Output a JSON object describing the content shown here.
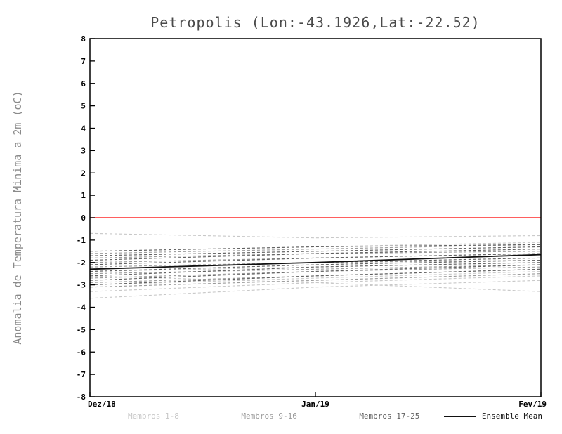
{
  "chart_data": {
    "type": "line",
    "title": "Petropolis (Lon:-43.1926,Lat:-22.52)",
    "xlabel": "",
    "ylabel": "Anomalia de Temperatura Minima a 2m (oC)",
    "x_ticks": [
      "Dez/18",
      "Jan/19",
      "Fev/19"
    ],
    "ylim": [
      -8,
      8
    ],
    "y_ticks": [
      8,
      7,
      6,
      5,
      4,
      3,
      2,
      1,
      0,
      -1,
      -2,
      -3,
      -4,
      -5,
      -6,
      -7,
      -8
    ],
    "grid": false,
    "legend_position": "bottom",
    "zero_line": {
      "value": 0,
      "color": "#ff2a2a"
    },
    "groups": [
      {
        "name": "Membros 1-8",
        "color": "#c7c7c7",
        "dash": "4 3",
        "series": [
          [
            -0.7,
            -0.9,
            -0.8
          ],
          [
            -1.5,
            -1.3,
            -1.1
          ],
          [
            -1.7,
            -1.5,
            -1.3
          ],
          [
            -2.4,
            -2.2,
            -2.0
          ],
          [
            -2.6,
            -2.9,
            -3.3
          ],
          [
            -3.0,
            -2.7,
            -2.4
          ],
          [
            -3.3,
            -2.9,
            -2.6
          ],
          [
            -3.6,
            -3.1,
            -2.8
          ]
        ]
      },
      {
        "name": "Membros 9-16",
        "color": "#9a9a9a",
        "dash": "4 3",
        "series": [
          [
            -1.6,
            -1.4,
            -1.2
          ],
          [
            -1.8,
            -1.6,
            -1.5
          ],
          [
            -2.0,
            -1.8,
            -1.6
          ],
          [
            -2.2,
            -2.0,
            -1.9
          ],
          [
            -2.5,
            -2.3,
            -2.1
          ],
          [
            -2.7,
            -2.4,
            -2.2
          ],
          [
            -2.9,
            -2.6,
            -2.3
          ],
          [
            -3.1,
            -2.8,
            -2.5
          ]
        ]
      },
      {
        "name": "Membros 17-25",
        "color": "#5f5f5f",
        "dash": "4 3",
        "series": [
          [
            -1.5,
            -1.3,
            -1.2
          ],
          [
            -1.7,
            -1.5,
            -1.3
          ],
          [
            -1.9,
            -1.6,
            -1.4
          ],
          [
            -2.1,
            -1.8,
            -1.6
          ],
          [
            -2.3,
            -2.0,
            -1.8
          ],
          [
            -2.4,
            -2.1,
            -1.9
          ],
          [
            -2.6,
            -2.2,
            -2.0
          ],
          [
            -2.8,
            -2.4,
            -2.1
          ],
          [
            -3.0,
            -2.6,
            -2.3
          ]
        ]
      }
    ],
    "ensemble_mean": {
      "name": "Ensemble Mean",
      "color": "#111111",
      "values": [
        -2.3,
        -2.0,
        -1.65
      ]
    }
  }
}
